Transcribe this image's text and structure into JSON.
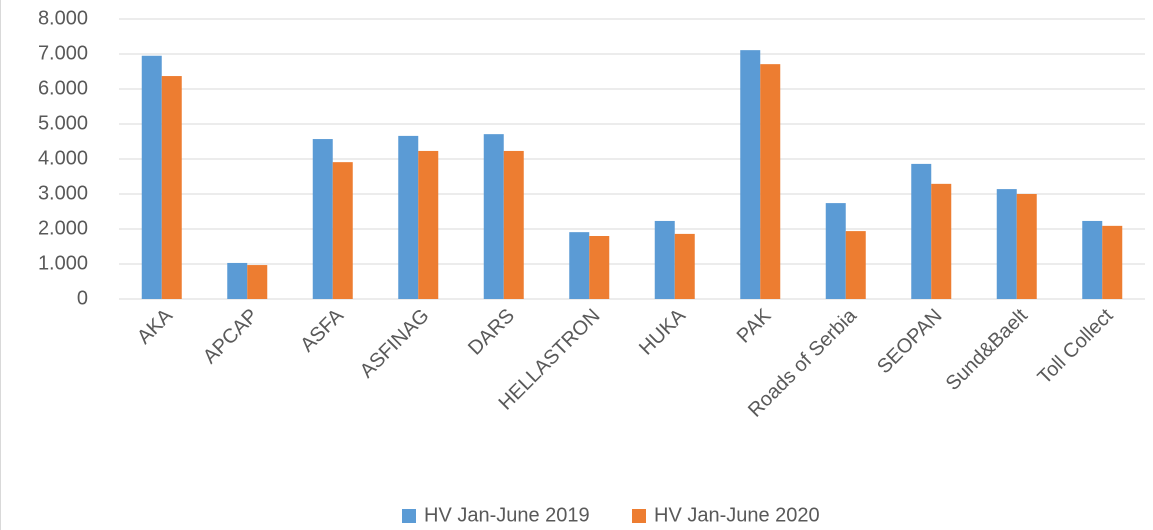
{
  "chart_data": {
    "type": "bar",
    "categories": [
      "AKA",
      "APCAP",
      "ASFA",
      "ASFINAG",
      "DARS",
      "HELLASTRON",
      "HUKA",
      "PAK",
      "Roads of Serbia",
      "SEOPAN",
      "Sund&Baelt",
      "Toll Collect"
    ],
    "series": [
      {
        "name": "HV Jan-June 2019",
        "color": "#5b9bd5",
        "values": [
          6950,
          1030,
          4570,
          4660,
          4710,
          1910,
          2230,
          7110,
          2740,
          3860,
          3140,
          2230
        ]
      },
      {
        "name": "HV Jan-June 2020",
        "color": "#ed7d31",
        "values": [
          6370,
          970,
          3910,
          4230,
          4230,
          1800,
          1860,
          6710,
          1940,
          3290,
          3000,
          2090
        ]
      }
    ],
    "ylim": [
      0,
      8000
    ],
    "yticks": [
      0,
      {
        "value": 1000,
        "label": "1.000"
      },
      {
        "value": 2000,
        "label": "2.000"
      },
      {
        "value": 3000,
        "label": "3.000"
      },
      {
        "value": 4000,
        "label": "4.000"
      },
      {
        "value": 5000,
        "label": "5.000"
      },
      {
        "value": 6000,
        "label": "6.000"
      },
      {
        "value": 7000,
        "label": "7.000"
      },
      {
        "value": 8000,
        "label": "8.000"
      }
    ],
    "grid": true,
    "legend": "bottom"
  }
}
